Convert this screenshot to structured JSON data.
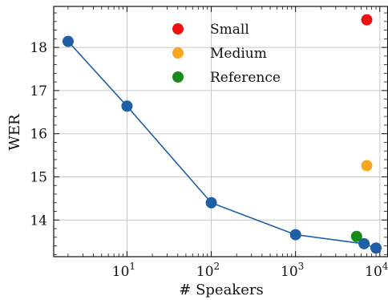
{
  "chart_data": {
    "type": "scatter",
    "xlabel": "# Speakers",
    "ylabel": "WER",
    "xscale": "log",
    "xlim": [
      1.35,
      12500
    ],
    "ylim": [
      13.15,
      18.95
    ],
    "x_ticks": [
      {
        "value": 10,
        "base": "10",
        "exp": "1"
      },
      {
        "value": 100,
        "base": "10",
        "exp": "2"
      },
      {
        "value": 1000,
        "base": "10",
        "exp": "3"
      },
      {
        "value": 10000,
        "base": "10",
        "exp": "4"
      }
    ],
    "y_ticks": [
      14,
      15,
      16,
      17,
      18
    ],
    "grid": true,
    "legend_position": "top-center",
    "line_series": {
      "color": "#1f5fa6",
      "points": [
        {
          "x": 2,
          "y": 18.14
        },
        {
          "x": 10,
          "y": 16.64
        },
        {
          "x": 100,
          "y": 14.4
        },
        {
          "x": 1000,
          "y": 13.66
        },
        {
          "x": 6500,
          "y": 13.45
        },
        {
          "x": 9000,
          "y": 13.35
        }
      ]
    },
    "series": [
      {
        "name": "Small",
        "color": "#ee1111",
        "points": [
          {
            "x": 7000,
            "y": 18.64
          }
        ]
      },
      {
        "name": "Medium",
        "color": "#f5a623",
        "points": [
          {
            "x": 7000,
            "y": 15.26
          }
        ]
      },
      {
        "name": "Reference",
        "color": "#1a8a1a",
        "points": [
          {
            "x": 5300,
            "y": 13.62
          }
        ]
      }
    ]
  }
}
